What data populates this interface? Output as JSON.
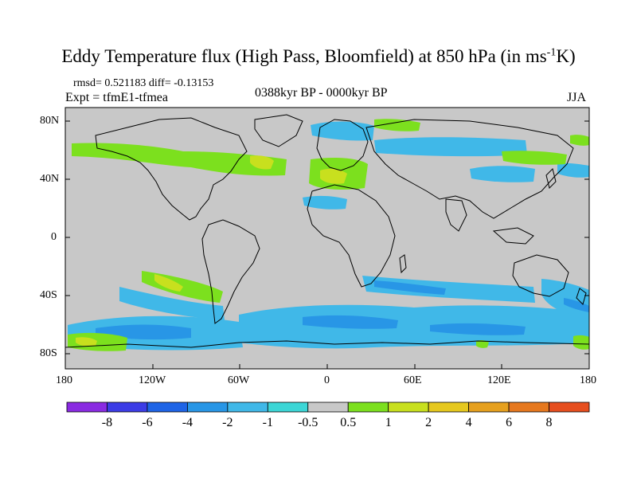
{
  "title": {
    "main": "Eddy Temperature flux (High Pass, Bloomfield) at 850 hPa (in ms",
    "sup": "-1",
    "tail": "K)"
  },
  "stats": {
    "rmsd_diff": "rmsd= 0.521183 diff= -0.13153",
    "expt": "Expt = tfmE1-tfmea",
    "period": "0388kyr BP - 0000kyr BP",
    "season": "JJA"
  },
  "axes": {
    "lat_labels": [
      "80N",
      "40N",
      "0",
      "40S",
      "80S"
    ],
    "lon_labels": [
      "180",
      "120W",
      "60W",
      "0",
      "60E",
      "120E",
      "180"
    ]
  },
  "colorbar": {
    "colors": [
      "#8a2be2",
      "#3c3ce6",
      "#1e64e6",
      "#2896e6",
      "#40b8e8",
      "#3cd6d6",
      "#c8c8c8",
      "#7ce01e",
      "#c8e01e",
      "#e6c81e",
      "#e6a01e",
      "#e6781e",
      "#e64e1e"
    ],
    "labels": [
      "-8",
      "-6",
      "-4",
      "-2",
      "-1",
      "-0.5",
      "0.5",
      "1",
      "2",
      "4",
      "6",
      "8"
    ]
  },
  "colors": {
    "background_field": "#c8c8c8",
    "land_outline": "#000000"
  }
}
